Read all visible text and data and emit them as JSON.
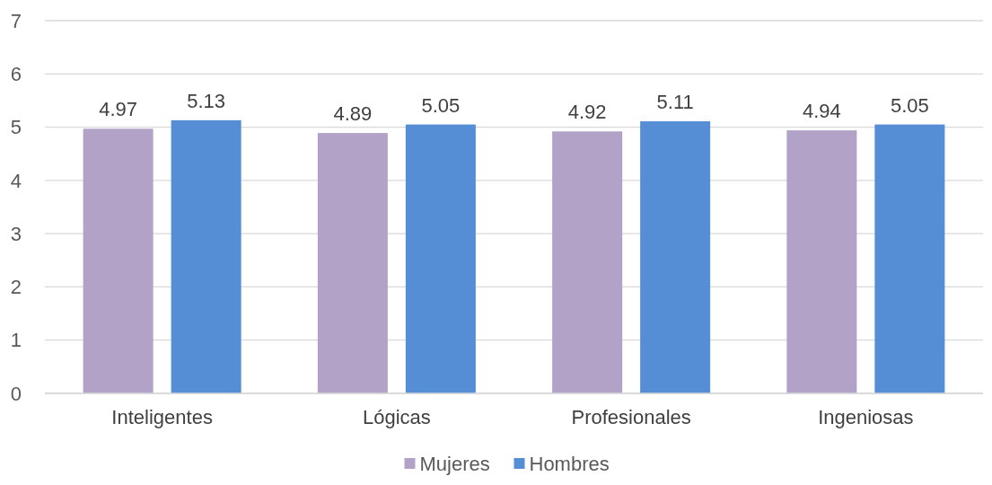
{
  "chart_data": {
    "type": "bar",
    "categories": [
      "Inteligentes",
      "Lógicas",
      "Profesionales",
      "Ingeniosas"
    ],
    "series": [
      {
        "name": "Mujeres",
        "color": "#b3a2c7",
        "values": [
          4.97,
          4.89,
          4.92,
          4.94
        ]
      },
      {
        "name": "Hombres",
        "color": "#558ed5",
        "values": [
          5.13,
          5.05,
          5.11,
          5.05
        ]
      }
    ],
    "ylim": [
      0,
      7
    ],
    "yticks": [
      0,
      1,
      2,
      3,
      4,
      5,
      6,
      7
    ],
    "grid": "y",
    "legend": "bottom",
    "data_labels": true
  }
}
